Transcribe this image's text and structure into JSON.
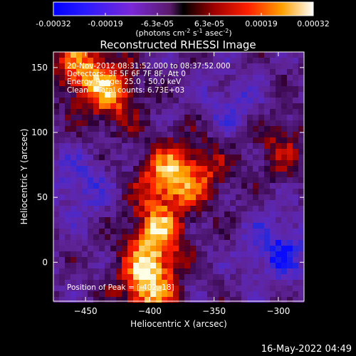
{
  "chart_data": {
    "type": "heatmap",
    "title": "Reconstructed RHESSI Image",
    "xlabel": "Heliocentric X (arcsec)",
    "ylabel": "Heliocentric Y (arcsec)",
    "xlim": [
      -475,
      -280
    ],
    "ylim": [
      -30,
      162
    ],
    "x_ticks": [
      -450,
      -400,
      -350,
      -300
    ],
    "y_ticks": [
      0,
      50,
      100,
      150
    ],
    "grid": false,
    "colorbar": {
      "ticks": [
        "-0.00032",
        "-0.00019",
        "-6.3e-05",
        "6.3e-05",
        "0.00019",
        "0.00032"
      ],
      "units_label": "(photons cm",
      "units_exp1": "-2",
      "units_mid": " s",
      "units_exp2": "-1",
      "units_mid2": " asec",
      "units_exp3": "-2",
      "units_end": ")",
      "range": [
        -0.00032,
        0.00032
      ]
    },
    "annotations": [
      "20-Nov-2012 08:31:52.000 to 08:37:52.000",
      "Detectors: 3F 5F 6F 7F 8F, Att 0",
      "Energy Range: 25.0 - 50.0 keV",
      "Clean    Total counts: 6.73E+03"
    ],
    "peak_label": "Position of Peak = [-402,-18]",
    "peak": [
      -402,
      -18
    ],
    "bright_sources": [
      {
        "x": -402,
        "y": -18,
        "amp": 1.0
      },
      {
        "x": -395,
        "y": 20,
        "amp": 0.85
      },
      {
        "x": -388,
        "y": 65,
        "amp": 0.8
      },
      {
        "x": -430,
        "y": 130,
        "amp": 0.75
      },
      {
        "x": -455,
        "y": 150,
        "amp": 0.7
      },
      {
        "x": -360,
        "y": 70,
        "amp": 0.55
      },
      {
        "x": -300,
        "y": 90,
        "amp": 0.45
      }
    ],
    "dark_sources": [
      {
        "x": -300,
        "y": 10,
        "amp": 0.9
      },
      {
        "x": -455,
        "y": 60,
        "amp": 0.6
      },
      {
        "x": -335,
        "y": 120,
        "amp": 0.55
      }
    ]
  },
  "footer": {
    "timestamp": "16-May-2022 04:49"
  }
}
